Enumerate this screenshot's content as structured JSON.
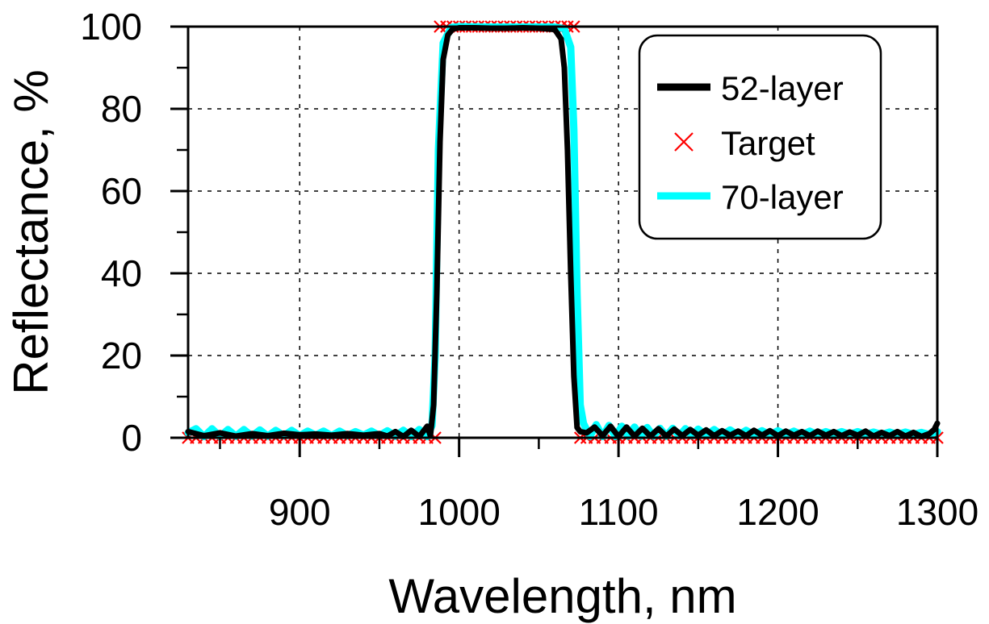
{
  "chart_data": {
    "type": "line",
    "title": "",
    "xlabel": "Wavelength, nm",
    "ylabel": "Reflectance, %",
    "xlim": [
      830,
      1300
    ],
    "ylim": [
      0,
      100
    ],
    "xticks": [
      900,
      1000,
      1100,
      1200,
      1300
    ],
    "yticks": [
      0,
      20,
      40,
      60,
      80,
      100
    ],
    "grid": true,
    "legend_position": "top-right",
    "series": [
      {
        "name": "52-layer",
        "style": "line",
        "color": "#000000",
        "x": [
          830,
          840,
          850,
          860,
          870,
          880,
          890,
          900,
          910,
          920,
          930,
          940,
          950,
          955,
          960,
          965,
          970,
          975,
          980,
          982,
          984,
          986,
          988,
          990,
          993,
          996,
          1000,
          1010,
          1020,
          1030,
          1040,
          1050,
          1060,
          1064,
          1066,
          1068,
          1070,
          1072,
          1074,
          1076,
          1080,
          1085,
          1090,
          1095,
          1100,
          1105,
          1110,
          1115,
          1120,
          1125,
          1130,
          1135,
          1140,
          1145,
          1150,
          1155,
          1160,
          1165,
          1170,
          1175,
          1180,
          1185,
          1190,
          1195,
          1200,
          1205,
          1210,
          1215,
          1220,
          1225,
          1230,
          1235,
          1240,
          1245,
          1250,
          1255,
          1260,
          1265,
          1270,
          1275,
          1280,
          1285,
          1290,
          1295,
          1298,
          1300
        ],
        "y": [
          1.5,
          0.5,
          1.2,
          0.4,
          1.0,
          0.5,
          1.1,
          0.7,
          0.9,
          0.6,
          1.0,
          0.6,
          1.0,
          0.4,
          1.5,
          0.3,
          1.8,
          0.3,
          2.8,
          0.5,
          8,
          35,
          72,
          92,
          98,
          99.4,
          99.7,
          99.7,
          99.6,
          99.6,
          99.7,
          99.6,
          99.3,
          97,
          90,
          70,
          40,
          15,
          2.5,
          1.5,
          1.2,
          2.6,
          0.5,
          2.8,
          0.3,
          2.6,
          0.4,
          2.3,
          0.4,
          2.2,
          0.4,
          2.1,
          0.5,
          2.0,
          0.6,
          1.9,
          0.5,
          1.7,
          0.6,
          1.6,
          0.5,
          1.8,
          0.6,
          1.7,
          0.5,
          1.6,
          0.6,
          1.5,
          0.5,
          1.6,
          0.6,
          1.5,
          0.5,
          1.4,
          0.6,
          1.6,
          0.4,
          1.3,
          0.5,
          1.5,
          0.4,
          1.3,
          0.3,
          1.0,
          2.0,
          3.5
        ]
      },
      {
        "name": "Target",
        "style": "markers",
        "marker": "x",
        "color": "#ff0000",
        "x": [
          830,
          835,
          840,
          845,
          850,
          855,
          860,
          865,
          870,
          875,
          880,
          885,
          890,
          895,
          900,
          905,
          910,
          915,
          920,
          925,
          930,
          935,
          940,
          945,
          950,
          955,
          960,
          965,
          970,
          975,
          980,
          985,
          988,
          992,
          996,
          1000,
          1004,
          1008,
          1012,
          1016,
          1020,
          1024,
          1028,
          1032,
          1036,
          1040,
          1044,
          1048,
          1052,
          1056,
          1060,
          1064,
          1068,
          1072,
          1076,
          1080,
          1085,
          1090,
          1095,
          1100,
          1105,
          1110,
          1115,
          1120,
          1125,
          1130,
          1135,
          1140,
          1145,
          1150,
          1155,
          1160,
          1165,
          1170,
          1175,
          1180,
          1185,
          1190,
          1195,
          1200,
          1205,
          1210,
          1215,
          1220,
          1225,
          1230,
          1235,
          1240,
          1245,
          1250,
          1255,
          1260,
          1265,
          1270,
          1275,
          1280,
          1285,
          1290,
          1295,
          1300
        ],
        "y": [
          0,
          0,
          0,
          0,
          0,
          0,
          0,
          0,
          0,
          0,
          0,
          0,
          0,
          0,
          0,
          0,
          0,
          0,
          0,
          0,
          0,
          0,
          0,
          0,
          0,
          0,
          0,
          0,
          0,
          0,
          0,
          0,
          100,
          100,
          100,
          100,
          100,
          100,
          100,
          100,
          100,
          100,
          100,
          100,
          100,
          100,
          100,
          100,
          100,
          100,
          100,
          100,
          100,
          100,
          0,
          0,
          0,
          0,
          0,
          0,
          0,
          0,
          0,
          0,
          0,
          0,
          0,
          0,
          0,
          0,
          0,
          0,
          0,
          0,
          0,
          0,
          0,
          0,
          0,
          0,
          0,
          0,
          0,
          0,
          0,
          0,
          0,
          0,
          0,
          0,
          0,
          0,
          0,
          0,
          0,
          0,
          0,
          0,
          0,
          0
        ]
      },
      {
        "name": "70-layer",
        "style": "line",
        "color": "#00ffff",
        "x": [
          830,
          835,
          840,
          845,
          850,
          855,
          860,
          865,
          870,
          875,
          880,
          885,
          890,
          895,
          900,
          905,
          910,
          915,
          920,
          925,
          930,
          935,
          940,
          945,
          950,
          955,
          960,
          965,
          970,
          975,
          980,
          983,
          985,
          987,
          990,
          995,
          1000,
          1020,
          1040,
          1060,
          1066,
          1070,
          1072,
          1074,
          1076,
          1078,
          1082,
          1086,
          1090,
          1094,
          1098,
          1102,
          1106,
          1110,
          1114,
          1118,
          1122,
          1126,
          1130,
          1134,
          1138,
          1142,
          1146,
          1150,
          1155,
          1160,
          1165,
          1170,
          1175,
          1180,
          1185,
          1190,
          1195,
          1200,
          1205,
          1210,
          1215,
          1220,
          1225,
          1230,
          1235,
          1240,
          1245,
          1250,
          1255,
          1260,
          1265,
          1270,
          1275,
          1280,
          1285,
          1290,
          1295,
          1300
        ],
        "y": [
          1.2,
          2.2,
          0.3,
          2.2,
          0.3,
          2.0,
          0.4,
          2.0,
          0.4,
          1.9,
          0.4,
          1.8,
          0.5,
          1.8,
          0.5,
          1.6,
          0.6,
          1.6,
          0.5,
          1.6,
          0.5,
          1.5,
          0.6,
          1.6,
          0.5,
          1.7,
          0.4,
          1.8,
          0.3,
          2.0,
          0.3,
          3,
          20,
          70,
          96,
          99.8,
          100,
          99.9,
          99.9,
          99.9,
          99.5,
          95,
          75,
          35,
          8,
          3.5,
          0.3,
          3.2,
          0.3,
          3.0,
          0.3,
          2.8,
          0.4,
          2.6,
          0.4,
          2.5,
          0.4,
          2.3,
          0.4,
          2.3,
          0.5,
          2.2,
          0.5,
          2.1,
          0.6,
          2.0,
          0.6,
          1.9,
          0.6,
          1.8,
          0.7,
          1.7,
          0.7,
          1.7,
          0.7,
          1.6,
          0.7,
          1.6,
          0.7,
          1.5,
          0.8,
          1.5,
          0.8,
          1.5,
          0.8,
          1.4,
          0.8,
          1.4,
          0.8,
          1.4,
          0.8,
          1.3,
          0.8,
          1.5
        ]
      }
    ]
  }
}
